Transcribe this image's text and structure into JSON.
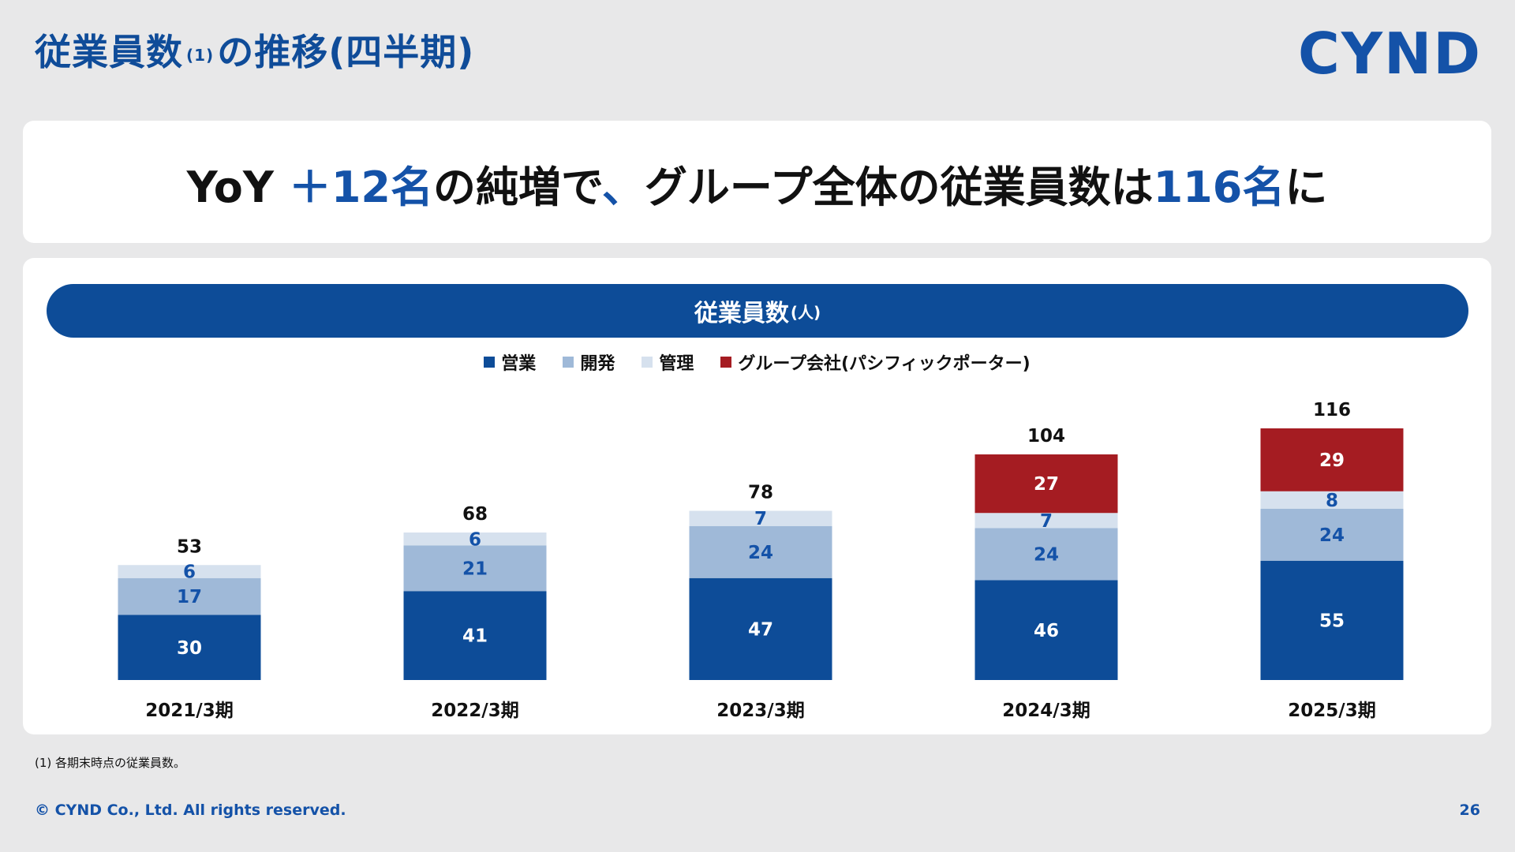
{
  "header": {
    "title_main": "従業員数",
    "title_note": "(1)",
    "title_rest": "の推移(四半期)",
    "logo": "CYND"
  },
  "headline": {
    "part1": "YoY",
    "part2": "＋12名",
    "part3": "の純増で",
    "part4": "、",
    "part5": "グループ全体の従業員数は",
    "part6": "116名",
    "part7": "に"
  },
  "chart_banner": {
    "title": "従業員数",
    "unit": "(人)"
  },
  "colors": {
    "sales": "#0d4c98",
    "dev": "#9fb9d8",
    "admin": "#d6e1ee",
    "group": "#a51c22",
    "accent": "#1452a8"
  },
  "chart_data": {
    "type": "bar",
    "stacked": true,
    "categories": [
      "2021/3期",
      "2022/3期",
      "2023/3期",
      "2024/3期",
      "2025/3期"
    ],
    "series": [
      {
        "name": "営業",
        "values": [
          30,
          41,
          47,
          46,
          55
        ]
      },
      {
        "name": "開発",
        "values": [
          17,
          21,
          24,
          24,
          24
        ]
      },
      {
        "name": "管理",
        "values": [
          6,
          6,
          7,
          7,
          8
        ]
      },
      {
        "name": "グループ会社(パシフィックポーター)",
        "values": [
          0,
          0,
          0,
          27,
          29
        ]
      }
    ],
    "totals": [
      53,
      68,
      78,
      104,
      116
    ],
    "legend_position": "top-center",
    "grid": false
  },
  "footer": {
    "footnote": "(1) 各期末時点の従業員数。",
    "copyright": "© CYND Co., Ltd. All rights reserved.",
    "page_number": "26"
  }
}
